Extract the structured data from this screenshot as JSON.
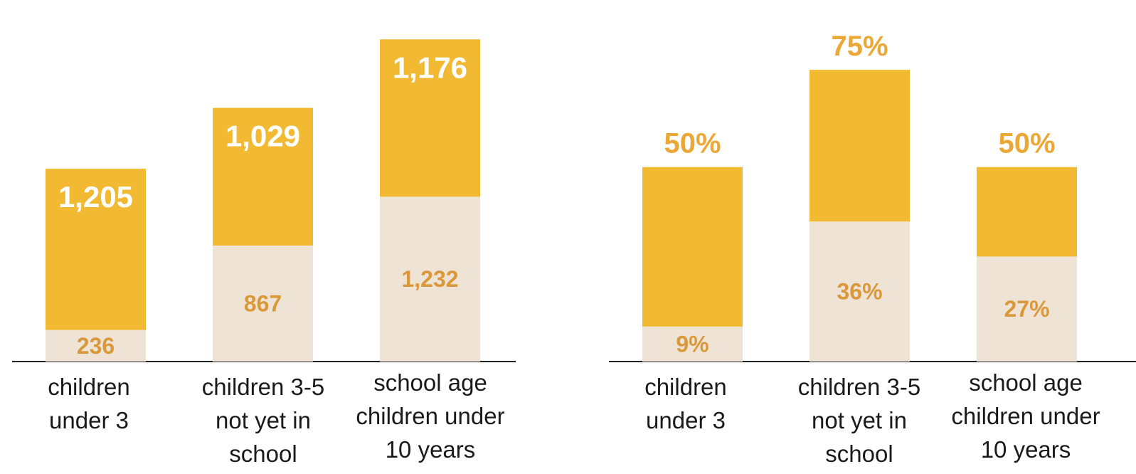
{
  "colors": {
    "upper": "#F2B933",
    "lower": "#EEE3D5",
    "label_on_upper": "#FFFFFF",
    "label_on_lower": "#D9993A",
    "label_above": "#EBA837",
    "axis": "#222222",
    "category_text": "#1a1a1a"
  },
  "chart_data": [
    {
      "type": "bar",
      "stacked": true,
      "categories": [
        [
          "children",
          "under 3"
        ],
        [
          "children 3-5",
          "not yet in",
          "school"
        ],
        [
          "school age",
          "children under",
          "10 years"
        ]
      ],
      "series": [
        {
          "values": [
            236,
            867,
            1232
          ],
          "labels": [
            "236",
            "867",
            "1,232"
          ]
        },
        {
          "values": [
            1205,
            1029,
            1176
          ],
          "labels": [
            "1,205",
            "1,029",
            "1,176"
          ]
        }
      ],
      "ylim": [
        0,
        2500
      ],
      "grid": false,
      "legend": "none"
    },
    {
      "type": "bar",
      "categories": [
        [
          "children",
          "under 3"
        ],
        [
          "children 3-5",
          "not yet in",
          "school"
        ],
        [
          "school age",
          "children under",
          "10 years"
        ]
      ],
      "series": [
        {
          "values": [
            9,
            36,
            27
          ],
          "labels": [
            "9%",
            "36%",
            "27%"
          ]
        },
        {
          "values": [
            50,
            75,
            50
          ],
          "labels": [
            "50%",
            "75%",
            "50%"
          ]
        }
      ],
      "overlay": true,
      "ylim": [
        0,
        86
      ],
      "grid": false,
      "legend": "none"
    }
  ]
}
